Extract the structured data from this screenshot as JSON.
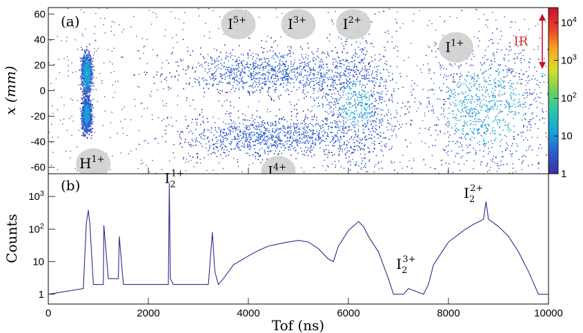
{
  "chart_data": [
    {
      "panel": "(a)",
      "type": "heatmap",
      "xlabel": "",
      "ylabel": "x (mm)",
      "xlim": [
        0,
        10000
      ],
      "ylim": [
        -65,
        65
      ],
      "yticks": [
        -60,
        -40,
        -20,
        0,
        20,
        40,
        60
      ],
      "colorbar": {
        "scale": "log",
        "range": [
          1,
          25000
        ],
        "ticks": [
          {
            "v": 1,
            "b": "1",
            "e": ""
          },
          {
            "v": 10,
            "b": "10",
            "e": ""
          },
          {
            "v": 100,
            "b": "10",
            "e": "2"
          },
          {
            "v": 1000,
            "b": "10",
            "e": "3"
          },
          {
            "v": 10000,
            "b": "10",
            "e": "4"
          }
        ],
        "colors": [
          "#3b2fa0",
          "#2b5ecf",
          "#1aa0d8",
          "#26c6b0",
          "#6fd25a",
          "#d7e02a",
          "#f5a623",
          "#e5402a",
          "#c8102e"
        ]
      },
      "ion_labels": [
        {
          "base": "H",
          "sup": "1+",
          "tof": 900,
          "x": -57
        },
        {
          "base": "I",
          "sup": "5+",
          "tof": 3800,
          "x": 52
        },
        {
          "base": "I",
          "sup": "3+",
          "tof": 5000,
          "x": 52
        },
        {
          "base": "I",
          "sup": "2+",
          "tof": 6100,
          "x": 52
        },
        {
          "base": "I",
          "sup": "1+",
          "tof": 8150,
          "x": 34
        },
        {
          "base": "I",
          "sup": "4+",
          "tof": 4600,
          "x": -63
        }
      ],
      "annotation": {
        "text": "IR",
        "tof": 9450,
        "x": 36,
        "color": "#d62828"
      },
      "clusters": [
        {
          "tof": 760,
          "x": 14,
          "dt": 50,
          "dx": 8,
          "level": 0.35
        },
        {
          "tof": 760,
          "x": -18,
          "dt": 50,
          "dx": 7,
          "level": 0.3
        },
        {
          "tof": 6150,
          "x": -10,
          "dt": 420,
          "dx": 26,
          "level": 0.25
        },
        {
          "tof": 8750,
          "x": -12,
          "dt": 620,
          "dx": 24,
          "level": 0.32
        },
        {
          "tof": 4400,
          "x": 15,
          "dt": 900,
          "dx": 9,
          "level": 0.16
        },
        {
          "tof": 4400,
          "x": -35,
          "dt": 900,
          "dx": 8,
          "level": 0.16
        }
      ]
    },
    {
      "panel": "(b)",
      "type": "line",
      "xlabel": "Tof (ns)",
      "ylabel": "Counts",
      "xlim": [
        0,
        10000
      ],
      "ylim": [
        0.5,
        5000
      ],
      "yscale": "log",
      "xticks": [
        0,
        2000,
        4000,
        6000,
        8000,
        10000
      ],
      "yticks": [
        {
          "v": 1,
          "b": "1",
          "e": ""
        },
        {
          "v": 10,
          "b": "10",
          "e": ""
        },
        {
          "v": 100,
          "b": "10",
          "e": "2"
        },
        {
          "v": 1000,
          "b": "10",
          "e": "3"
        }
      ],
      "series": [
        {
          "color": "#2a2a8c",
          "x": [
            0,
            700,
            760,
            800,
            830,
            900,
            1100,
            1110,
            1200,
            1400,
            1420,
            1500,
            2000,
            2400,
            2420,
            2440,
            2500,
            3200,
            3280,
            3330,
            3400,
            3500,
            3700,
            4000,
            4200,
            4400,
            4600,
            4800,
            5000,
            5200,
            5400,
            5600,
            5700,
            5800,
            6000,
            6200,
            6300,
            6400,
            6600,
            6800,
            6900,
            7000,
            7100,
            7200,
            7500,
            7600,
            7700,
            8000,
            8300,
            8500,
            8700,
            8750,
            8800,
            9000,
            9200,
            9400,
            9600,
            9800,
            9850,
            10000
          ],
          "values": [
            1,
            1.5,
            150,
            380,
            150,
            2,
            2,
            130,
            3,
            3,
            60,
            2,
            2,
            2,
            2500,
            3,
            2,
            2,
            80,
            5,
            2,
            3,
            8,
            15,
            22,
            30,
            35,
            40,
            45,
            40,
            25,
            12,
            10,
            30,
            90,
            170,
            120,
            60,
            20,
            3,
            1,
            1,
            1,
            1.5,
            1,
            2,
            8,
            40,
            90,
            140,
            200,
            700,
            200,
            120,
            60,
            20,
            5,
            1,
            1,
            1
          ]
        }
      ],
      "peak_labels": [
        {
          "base": "I",
          "sub": "2",
          "sup": "1+",
          "tof": 2520,
          "v": 2600
        },
        {
          "base": "I",
          "sub": "2",
          "sup": "3+",
          "tof": 7150,
          "v": 6
        },
        {
          "base": "I",
          "sub": "2",
          "sup": "2+",
          "tof": 8500,
          "v": 900
        }
      ]
    }
  ]
}
